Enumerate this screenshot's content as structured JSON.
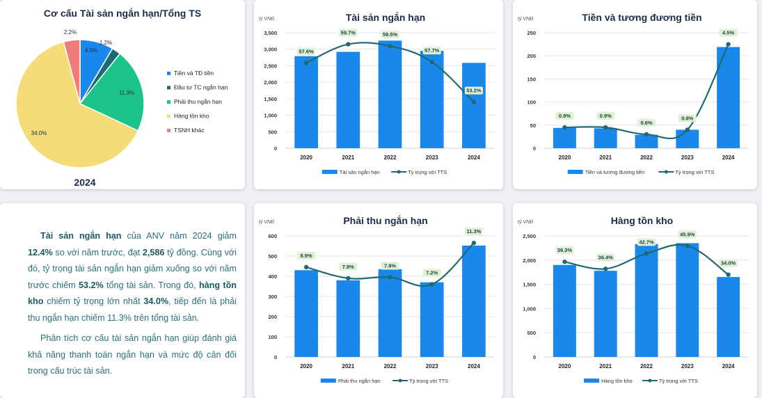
{
  "colors": {
    "bar": "#1a88ea",
    "line": "#1f6a72",
    "label_bg": "#dff3d4",
    "grid": "#e6e6e6",
    "pie": [
      "#1a88ea",
      "#1f6a72",
      "#1cc48a",
      "#f5dc78",
      "#f07b7b"
    ]
  },
  "pie_card": {
    "title": "Cơ cấu Tài sản ngắn hạn/Tổng TS",
    "year_label": "2024"
  },
  "text_card": {
    "p1": [
      {
        "t": "Tài sản ngắn hạn",
        "b": true
      },
      {
        "t": " của ANV năm 2024 giảm ",
        "b": false
      },
      {
        "t": "12.4%",
        "b": true
      },
      {
        "t": " so với năm trước, đạt ",
        "b": false
      },
      {
        "t": "2,586",
        "b": true
      },
      {
        "t": " tỷ đồng. Cùng với đó, tỷ trọng tài sản ngắn hạn giảm xuống so với năm trước chiếm ",
        "b": false
      },
      {
        "t": "53.2%",
        "b": true
      },
      {
        "t": " tổng tài sản. Trong đó, ",
        "b": false
      },
      {
        "t": "hàng tồn kho",
        "b": true
      },
      {
        "t": " chiếm tỷ trọng lớn nhất ",
        "b": false
      },
      {
        "t": "34.0%",
        "b": true
      },
      {
        "t": ", tiếp đến là phải thu ngắn hạn chiếm 11.3% trên tổng tài sản.",
        "b": false
      }
    ],
    "p2": "Phân tích cơ cấu tài sản ngắn hạn giúp đánh giá khả năng thanh toán ngắn hạn và mức độ cân đối trong cấu trúc tài sản."
  },
  "chart_data": [
    {
      "type": "pie",
      "title": "Cơ cấu Tài sản ngắn hạn/Tổng TS",
      "subtitle": "2024",
      "labels": [
        "Tiền và TĐ tiền",
        "Đầu tư TC ngắn hạn",
        "Phải thu ngắn hạn",
        "Hàng tồn kho",
        "TSNH khác"
      ],
      "values": [
        4.5,
        1.2,
        11.3,
        34.0,
        2.2
      ],
      "value_labels": [
        "4.5%",
        "1.2%",
        "11.3%",
        "34.0%",
        "2.2%"
      ],
      "legend": "right"
    },
    {
      "type": "bar",
      "title": "Tài sản ngắn hạn",
      "unit": "tỷ VNĐ",
      "categories": [
        "2020",
        "2021",
        "2022",
        "2023",
        "2024"
      ],
      "series": [
        {
          "name": "Tài sản ngắn hạn",
          "kind": "bar",
          "values": [
            2790,
            2920,
            3260,
            2950,
            2586
          ]
        },
        {
          "name": "Tỷ trọng với TTS",
          "kind": "line",
          "values": [
            57.6,
            59.7,
            59.5,
            57.7,
            53.2
          ],
          "labels": [
            "57.6%",
            "59.7%",
            "59.5%",
            "57.7%",
            "53.2%"
          ]
        }
      ],
      "ylim": [
        0,
        3500
      ],
      "yticks": [
        0,
        500,
        1000,
        1500,
        2000,
        2500,
        3000,
        3500
      ],
      "ytick_labels": [
        "0",
        "500",
        "1,000",
        "1,500",
        "2,000",
        "2,500",
        "3,000",
        "3,500"
      ],
      "line_range": [
        48,
        61
      ],
      "grid": true,
      "legend": "bottom"
    },
    {
      "type": "bar",
      "title": "Tiền và tương đương tiền",
      "unit": "tỷ VNĐ",
      "categories": [
        "2020",
        "2021",
        "2022",
        "2023",
        "2024"
      ],
      "series": [
        {
          "name": "Tiền và tương đương tiền",
          "kind": "bar",
          "values": [
            44,
            43,
            29,
            40,
            219
          ]
        },
        {
          "name": "Tỷ trọng với TTS",
          "kind": "line",
          "values": [
            0.9,
            0.9,
            0.6,
            0.8,
            4.5
          ],
          "labels": [
            "0.9%",
            "0.9%",
            "0.6%",
            "0.8%",
            "4.5%"
          ]
        }
      ],
      "ylim": [
        0,
        250
      ],
      "yticks": [
        0,
        50,
        100,
        150,
        200,
        250
      ],
      "ytick_labels": [
        "0",
        "50",
        "100",
        "150",
        "200",
        "250"
      ],
      "line_range": [
        0,
        5
      ],
      "grid": true,
      "legend": "bottom"
    },
    {
      "type": "bar",
      "title": "Phải thu ngắn hạn",
      "unit": "tỷ VNĐ",
      "categories": [
        "2020",
        "2021",
        "2022",
        "2023",
        "2024"
      ],
      "series": [
        {
          "name": "Phải thu ngắn hạn",
          "kind": "bar",
          "values": [
            430,
            380,
            435,
            370,
            552
          ]
        },
        {
          "name": "Tỷ trọng với TTS",
          "kind": "line",
          "values": [
            8.9,
            7.8,
            7.9,
            7.2,
            11.3
          ],
          "labels": [
            "8.9%",
            "7.8%",
            "7.9%",
            "7.2%",
            "11.3%"
          ]
        }
      ],
      "ylim": [
        0,
        600
      ],
      "yticks": [
        0,
        100,
        200,
        300,
        400,
        500,
        600
      ],
      "ytick_labels": [
        "0",
        "100",
        "200",
        "300",
        "400",
        "500",
        "600"
      ],
      "line_range": [
        0,
        12
      ],
      "grid": true,
      "legend": "bottom"
    },
    {
      "type": "bar",
      "title": "Hàng tồn kho",
      "unit": "tỷ VNĐ",
      "categories": [
        "2020",
        "2021",
        "2022",
        "2023",
        "2024"
      ],
      "series": [
        {
          "name": "Hàng tồn kho",
          "kind": "bar",
          "values": [
            1900,
            1780,
            2330,
            2350,
            1650
          ]
        },
        {
          "name": "Tỷ trọng với TTS",
          "kind": "line",
          "values": [
            39.3,
            36.4,
            42.7,
            45.9,
            34.0
          ],
          "labels": [
            "39.3%",
            "36.4%",
            "42.7%",
            "45.9%",
            "34.0%"
          ]
        }
      ],
      "ylim": [
        0,
        2500
      ],
      "yticks": [
        0,
        500,
        1000,
        1500,
        2000,
        2500
      ],
      "ytick_labels": [
        "0",
        "500",
        "1,000",
        "1,500",
        "2,000",
        "2,500"
      ],
      "line_range": [
        0,
        50
      ],
      "grid": true,
      "legend": "bottom"
    }
  ]
}
